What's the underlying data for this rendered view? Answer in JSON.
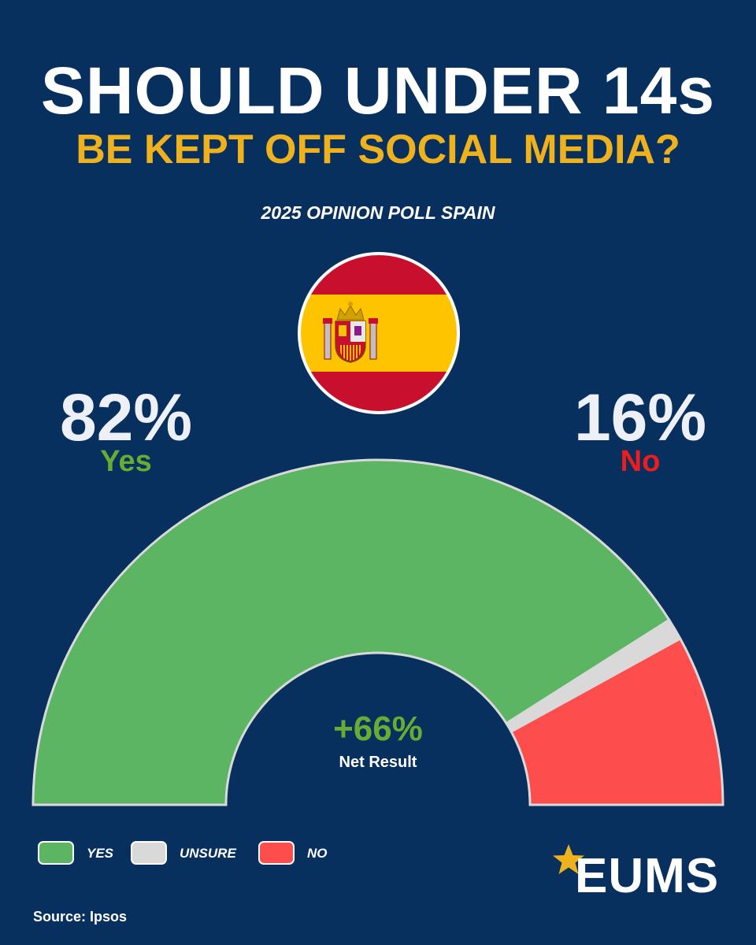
{
  "title": {
    "line1": "SHOULD UNDER 14s",
    "line2": "BE KEPT OFF SOCIAL MEDIA?"
  },
  "subtitle": "2025 OPINION POLL SPAIN",
  "colors": {
    "background": "#07305f",
    "yes": "#5cb562",
    "unsure": "#d9d9d9",
    "no": "#fe4d4d",
    "title_accent": "#f0b21c",
    "yes_text": "#6aac33",
    "no_text": "#ee1d1d"
  },
  "yes": {
    "value": "82%",
    "label": "Yes"
  },
  "no": {
    "value": "16%",
    "label": "No"
  },
  "net": {
    "value": "+66%",
    "label": "Net Result"
  },
  "legend": [
    {
      "label": "YES",
      "color": "#5cb562"
    },
    {
      "label": "UNSURE",
      "color": "#d9d9d9"
    },
    {
      "label": "NO",
      "color": "#fe4d4d"
    }
  ],
  "source": "Source: Ipsos",
  "logo": {
    "text": "EUMS",
    "icon": "star-icon"
  },
  "chart_data": {
    "type": "pie",
    "subtype": "semicircle-donut",
    "title": "SHOULD UNDER 14s BE KEPT OFF SOCIAL MEDIA?",
    "subtitle": "2025 OPINION POLL SPAIN",
    "categories": [
      "Yes",
      "Unsure",
      "No"
    ],
    "values": [
      82,
      2,
      16
    ],
    "colors": [
      "#5cb562",
      "#d9d9d9",
      "#fe4d4d"
    ],
    "net_result": 66,
    "legend_position": "bottom-left"
  }
}
